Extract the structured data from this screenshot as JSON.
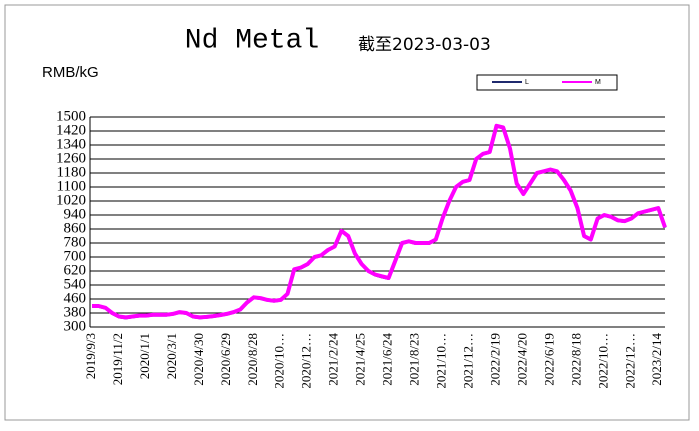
{
  "chart_data": {
    "type": "line",
    "title": "Nd Metal",
    "subtitle": "截至2023-03-03",
    "y_label": "RMB/kG",
    "categories": [
      "2019/9/3",
      null,
      null,
      null,
      "2019/11/2",
      null,
      null,
      null,
      "2020/1/1",
      null,
      null,
      null,
      "2020/3/1",
      null,
      null,
      null,
      "2020/4/30",
      null,
      null,
      null,
      "2020/6/29",
      null,
      null,
      null,
      "2020/8/28",
      null,
      null,
      null,
      "2020/10…",
      null,
      null,
      null,
      "2020/12…",
      null,
      null,
      null,
      "2021/2/24",
      null,
      null,
      null,
      "2021/4/25",
      null,
      null,
      null,
      "2021/6/24",
      null,
      null,
      null,
      "2021/8/23",
      null,
      null,
      null,
      "2021/10…",
      null,
      null,
      null,
      "2021/12…",
      null,
      null,
      null,
      "2022/2/19",
      null,
      null,
      null,
      "2022/4/20",
      null,
      null,
      null,
      "2022/6/19",
      null,
      null,
      null,
      "2022/8/18",
      null,
      null,
      null,
      "2022/10…",
      null,
      null,
      null,
      "2022/12…",
      null,
      null,
      null,
      "2023/2/14",
      null
    ],
    "series": [
      {
        "name": "L",
        "color": "#1f2a6e",
        "values": [
          418,
          418,
          408,
          378,
          358,
          352,
          358,
          363,
          363,
          368,
          368,
          368,
          373,
          383,
          378,
          358,
          353,
          356,
          360,
          366,
          373,
          383,
          398,
          438,
          468,
          463,
          453,
          448,
          453,
          488,
          628,
          638,
          658,
          698,
          708,
          738,
          760,
          848,
          818,
          718,
          660,
          618,
          598,
          586,
          578,
          678,
          778,
          788,
          778,
          778,
          778,
          798,
          918,
          1018,
          1098,
          1128,
          1138,
          1258,
          1288,
          1298,
          1448,
          1438,
          1318,
          1118,
          1058,
          1118,
          1178,
          1188,
          1198,
          1188,
          1138,
          1078,
          978,
          818,
          798,
          918,
          938,
          928,
          908,
          903,
          918,
          948,
          958,
          968,
          978,
          868
        ]
      },
      {
        "name": "M",
        "color": "#ff00ff",
        "values": [
          420,
          420,
          410,
          380,
          360,
          355,
          360,
          365,
          365,
          370,
          370,
          370,
          375,
          385,
          380,
          360,
          355,
          358,
          362,
          368,
          375,
          385,
          400,
          440,
          470,
          465,
          455,
          450,
          455,
          490,
          630,
          640,
          660,
          700,
          710,
          740,
          760,
          850,
          820,
          720,
          660,
          620,
          600,
          590,
          580,
          680,
          780,
          790,
          780,
          780,
          780,
          800,
          920,
          1020,
          1100,
          1130,
          1140,
          1260,
          1290,
          1300,
          1450,
          1440,
          1320,
          1120,
          1060,
          1120,
          1180,
          1190,
          1200,
          1190,
          1140,
          1080,
          980,
          820,
          800,
          920,
          940,
          930,
          910,
          905,
          920,
          950,
          960,
          970,
          980,
          870
        ]
      }
    ],
    "ylim": [
      300,
      1500
    ],
    "yticks": [
      300,
      380,
      460,
      540,
      620,
      700,
      780,
      860,
      940,
      1020,
      1100,
      1180,
      1260,
      1340,
      1420,
      1500
    ],
    "grid": true,
    "legend": "top-right"
  }
}
